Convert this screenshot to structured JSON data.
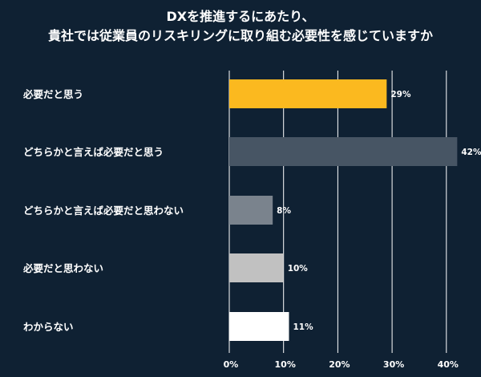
{
  "chart_data": {
    "type": "bar",
    "orientation": "horizontal",
    "title": [
      "DXを推進するにあたり、",
      "貴社では従業員のリスキリングに取り組む必要性を感じていますか"
    ],
    "categories": [
      "必要だと思う",
      "どちらかと言えば必要だと思う",
      "どちらかと言えば必要だと思わない",
      "必要だと思わない",
      "わからない"
    ],
    "values": [
      29,
      42,
      8,
      10,
      11
    ],
    "value_labels": [
      "29%",
      "42%",
      "8%",
      "10%",
      "11%"
    ],
    "bar_colors": [
      "#fbb91f",
      "#475564",
      "#7a838d",
      "#c1c1c1",
      "#ffffff"
    ],
    "xlim": [
      0,
      42
    ],
    "xticks": [
      0,
      10,
      20,
      30,
      40
    ],
    "xtick_labels": [
      "0%",
      "10%",
      "20%",
      "30%",
      "40%"
    ],
    "grid": true,
    "legend": "none",
    "background": "#0f2133"
  }
}
